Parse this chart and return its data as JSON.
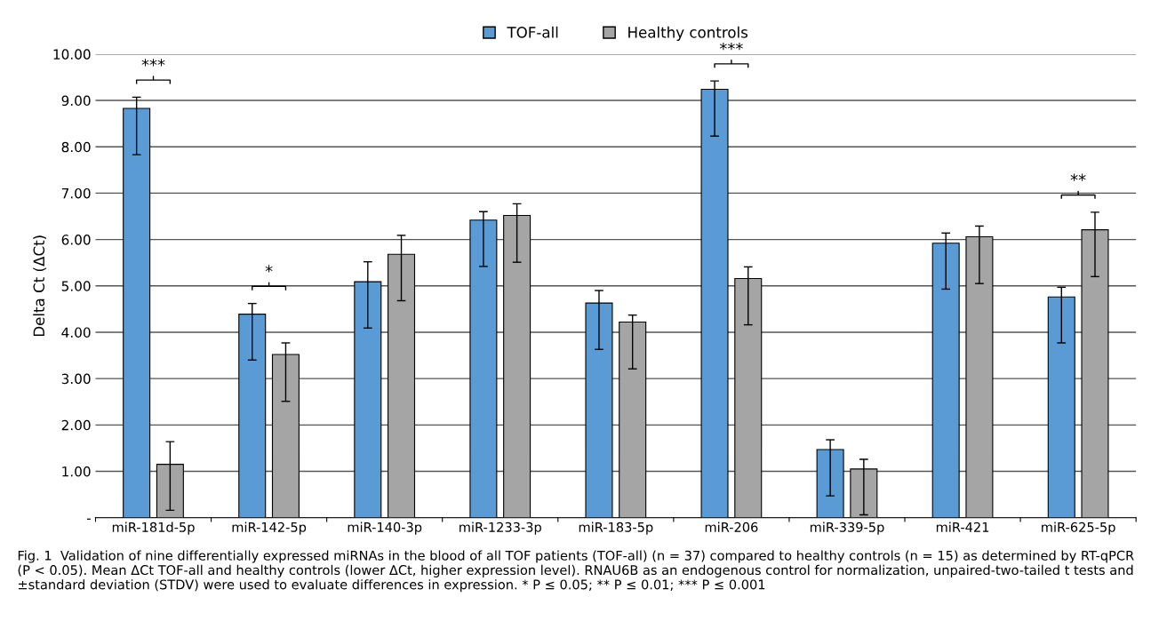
{
  "chart_data": {
    "type": "bar",
    "ylabel": "Delta Ct (ΔCt)",
    "categories": [
      "miR-181d-5p",
      "miR-142-5p",
      "miR-140-3p",
      "miR-1233-3p",
      "miR-183-5p",
      "miR-206",
      "miR-339-5p",
      "miR-421",
      "miR-625-5p"
    ],
    "series": [
      {
        "name": "TOF-all",
        "color": "#5b9bd5",
        "values": [
          8.83,
          4.39,
          5.09,
          6.42,
          4.63,
          9.24,
          1.47,
          5.92,
          4.76
        ],
        "errors": [
          [
            7.83,
            9.07
          ],
          [
            3.4,
            4.62
          ],
          [
            4.09,
            5.52
          ],
          [
            5.42,
            6.6
          ],
          [
            3.63,
            4.9
          ],
          [
            8.23,
            9.42
          ],
          [
            0.47,
            1.68
          ],
          [
            4.93,
            6.14
          ],
          [
            3.77,
            4.97
          ]
        ]
      },
      {
        "name": "Healthy controls",
        "color": "#a5a5a5",
        "values": [
          1.15,
          3.52,
          5.68,
          6.52,
          4.22,
          5.16,
          1.05,
          6.06,
          6.21
        ],
        "errors": [
          [
            0.16,
            1.64
          ],
          [
            2.51,
            3.77
          ],
          [
            4.68,
            6.09
          ],
          [
            5.51,
            6.77
          ],
          [
            3.21,
            4.37
          ],
          [
            4.16,
            5.41
          ],
          [
            0.06,
            1.26
          ],
          [
            5.05,
            6.29
          ],
          [
            5.2,
            6.59
          ]
        ]
      }
    ],
    "ylim": [
      0,
      10
    ],
    "yticks": [
      {
        "value": 0,
        "label": "-"
      },
      {
        "value": 1,
        "label": "1.00"
      },
      {
        "value": 2,
        "label": "2.00"
      },
      {
        "value": 3,
        "label": "3.00"
      },
      {
        "value": 4,
        "label": "4.00"
      },
      {
        "value": 5,
        "label": "5.00"
      },
      {
        "value": 6,
        "label": "6.00"
      },
      {
        "value": 7,
        "label": "7.00"
      },
      {
        "value": 8,
        "label": "8.00"
      },
      {
        "value": 9,
        "label": "9.00"
      },
      {
        "value": 10,
        "label": "10.00"
      }
    ],
    "grid": "y",
    "legend": "top",
    "annotations": [
      "***",
      "*",
      "***",
      "**",
      "Fig. 1  Validation of nine differentially expressed miRNAs in the blood of all TOF patients (TOF-all) (n = 37) compared to healthy controls (n = 15) as determined by RT-qPCR (P < 0.05). Mean ΔCt TOF-all and healthy controls (lower ΔCt, higher expression level). RNAU6B as an endogenous control for normalization, unpaired-two-tailed t tests and ±standard deviation (STDV) were used to evaluate differences in expression. * P ≤ 0.05; ** P ≤ 0.01; *** P ≤ 0.001"
    ]
  }
}
